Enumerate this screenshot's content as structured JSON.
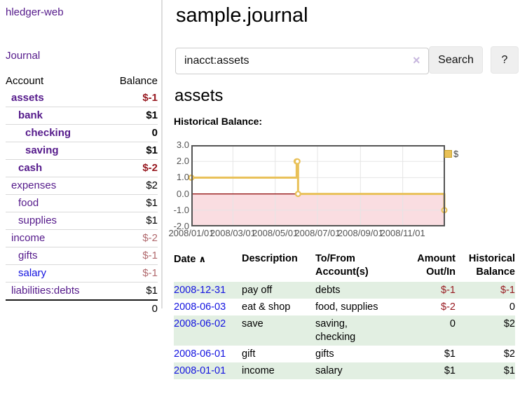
{
  "colors": {
    "link_purple": "#551a8b",
    "link_blue": "#1414e0",
    "negative": "#97181f",
    "negative_muted": "#b16a6e",
    "row_green": "#e2efe2",
    "chart_gold": "#e9c158"
  },
  "app": {
    "name": "hledger-web"
  },
  "nav": {
    "journal": "Journal"
  },
  "sidebar": {
    "accounts_table": {
      "header_account": "Account",
      "header_balance": "Balance",
      "rows": [
        {
          "name": "assets",
          "indent": 1,
          "name_class": "purple bold",
          "balance": "$-1",
          "balance_class": "neg bold"
        },
        {
          "name": "bank",
          "indent": 2,
          "name_class": "purple bold",
          "balance": "$1",
          "balance_class": "bold"
        },
        {
          "name": "checking",
          "indent": 3,
          "name_class": "purple bold",
          "balance": "0",
          "balance_class": "bold"
        },
        {
          "name": "saving",
          "indent": 3,
          "name_class": "purple bold",
          "balance": "$1",
          "balance_class": "bold"
        },
        {
          "name": "cash",
          "indent": 2,
          "name_class": "purple bold",
          "balance": "$-2",
          "balance_class": "neg bold"
        },
        {
          "name": "expenses",
          "indent": 1,
          "name_class": "purple",
          "balance": "$2",
          "balance_class": ""
        },
        {
          "name": "food",
          "indent": 2,
          "name_class": "purple",
          "balance": "$1",
          "balance_class": ""
        },
        {
          "name": "supplies",
          "indent": 2,
          "name_class": "purple",
          "balance": "$1",
          "balance_class": ""
        },
        {
          "name": "income",
          "indent": 1,
          "name_class": "purple",
          "balance": "$-2",
          "balance_class": "neg-light"
        },
        {
          "name": "gifts",
          "indent": 2,
          "name_class": "purple",
          "balance": "$-1",
          "balance_class": "neg-light"
        },
        {
          "name": "salary",
          "indent": 2,
          "name_class": "blue",
          "balance": "$-1",
          "balance_class": "neg-light"
        },
        {
          "name": "liabilities:debts",
          "indent": 1,
          "name_class": "purple",
          "balance": "$1",
          "balance_class": ""
        }
      ],
      "total": "0"
    }
  },
  "header": {
    "title": "sample.journal"
  },
  "search": {
    "value": "inacct:assets",
    "clear_icon": "×",
    "button_label": "Search",
    "help_label": "?"
  },
  "account_page": {
    "heading": "assets",
    "chart_label": "Historical Balance:"
  },
  "chart_data": {
    "type": "line",
    "step": true,
    "title": "Historical Balance",
    "x_range": [
      "2008-01-01",
      "2009-01-01"
    ],
    "ylim": [
      -2.0,
      3.0
    ],
    "grid": true,
    "legend": "$",
    "legend_position": "top-right",
    "negative_fill": "#fadde1",
    "zero_line_color": "#8b0000",
    "series": [
      {
        "name": "$",
        "points": [
          {
            "x": "2008-01-01",
            "y": 1
          },
          {
            "x": "2008-06-01",
            "y": 2
          },
          {
            "x": "2008-06-02",
            "y": 2
          },
          {
            "x": "2008-06-03",
            "y": 0
          },
          {
            "x": "2008-12-31",
            "y": -1
          }
        ]
      }
    ],
    "yticks": [
      {
        "label": "3.0",
        "value": 3
      },
      {
        "label": "2.0",
        "value": 2
      },
      {
        "label": "1.0",
        "value": 1
      },
      {
        "label": "0.0",
        "value": 0
      },
      {
        "label": "-1.0",
        "value": -1
      },
      {
        "label": "-2.0",
        "value": -2
      }
    ],
    "xticks": [
      {
        "label": "2008/01/01",
        "date": "2008-01-01"
      },
      {
        "label": "2008/03/01",
        "date": "2008-03-01"
      },
      {
        "label": "2008/05/01",
        "date": "2008-05-01"
      },
      {
        "label": "2008/07/01",
        "date": "2008-07-01"
      },
      {
        "label": "2008/09/01",
        "date": "2008-09-01"
      },
      {
        "label": "2008/11/01",
        "date": "2008-11-01"
      }
    ]
  },
  "register_table": {
    "headers": {
      "date_label": "Date",
      "sort_icon": "∧",
      "description": "Description",
      "tofrom_line1": "To/From",
      "tofrom_line2": "Account(s)",
      "amount_line1": "Amount",
      "amount_line2": "Out/In",
      "hist_line1": "Historical",
      "hist_line2": "Balance"
    },
    "rows": [
      {
        "date": "2008-12-31",
        "description": "pay off",
        "accounts": "debts",
        "amount": "$-1",
        "amount_class": "neg",
        "balance": "$-1",
        "balance_class": "neg"
      },
      {
        "date": "2008-06-03",
        "description": "eat & shop",
        "accounts": "food, supplies",
        "amount": "$-2",
        "amount_class": "neg",
        "balance": "0",
        "balance_class": ""
      },
      {
        "date": "2008-06-02",
        "description": "save",
        "accounts": "saving, checking",
        "amount": "0",
        "amount_class": "",
        "balance": "$2",
        "balance_class": ""
      },
      {
        "date": "2008-06-01",
        "description": "gift",
        "accounts": "gifts",
        "amount": "$1",
        "amount_class": "",
        "balance": "$2",
        "balance_class": ""
      },
      {
        "date": "2008-01-01",
        "description": "income",
        "accounts": "salary",
        "amount": "$1",
        "amount_class": "",
        "balance": "$1",
        "balance_class": ""
      }
    ]
  }
}
